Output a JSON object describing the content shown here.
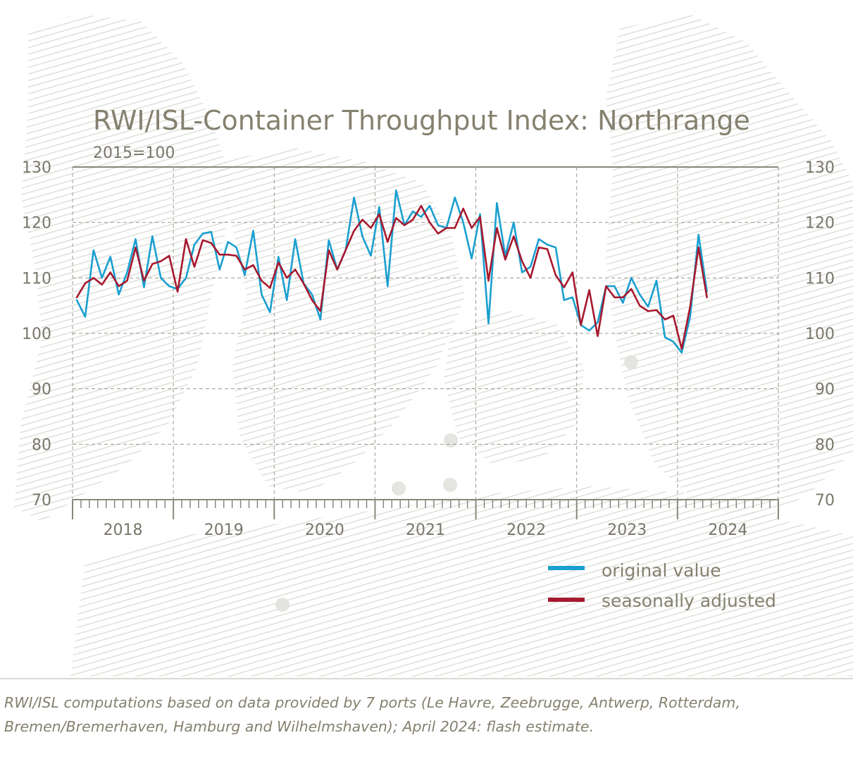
{
  "chart_data": {
    "type": "line",
    "title": "RWI/ISL-Container Throughput Index: Northrange",
    "subtitle": "2015=100",
    "ylim": [
      70,
      130
    ],
    "y_ticks": [
      70,
      80,
      90,
      100,
      110,
      120,
      130
    ],
    "x_start": "2018-01",
    "x_end": "2024-12",
    "x_labels": [
      "2018",
      "2019",
      "2020",
      "2021",
      "2022",
      "2023",
      "2024"
    ],
    "grid": true,
    "legend_position": "bottom-right",
    "series": [
      {
        "name": "original value",
        "color": "#1a9fd0",
        "values": [
          106.0,
          103.0,
          115.0,
          110.0,
          113.8,
          107.0,
          111.0,
          117.0,
          108.3,
          117.5,
          110.0,
          108.5,
          108.0,
          110.0,
          116.0,
          118.0,
          118.3,
          111.5,
          116.5,
          115.5,
          110.5,
          118.5,
          107.0,
          103.8,
          113.8,
          106.0,
          117.0,
          109.0,
          107.0,
          102.5,
          116.8,
          111.5,
          115.0,
          124.5,
          117.5,
          114.0,
          122.8,
          108.5,
          125.8,
          119.5,
          122.0,
          121.0,
          123.0,
          119.5,
          119.0,
          124.5,
          120.0,
          113.5,
          121.5,
          101.8,
          123.5,
          114.0,
          120.0,
          111.0,
          112.0,
          117.0,
          116.0,
          115.5,
          106.0,
          106.5,
          101.5,
          100.5,
          102.0,
          108.5,
          108.5,
          105.5,
          110.0,
          107.0,
          104.8,
          109.5,
          99.3,
          98.5,
          96.5,
          103.0,
          117.8,
          107.5
        ]
      },
      {
        "name": "seasonally adjusted",
        "color": "#a6192e",
        "values": [
          106.5,
          109.0,
          110.0,
          108.8,
          111.0,
          108.5,
          109.5,
          115.5,
          109.5,
          112.5,
          113.0,
          114.0,
          107.5,
          117.0,
          112.0,
          116.8,
          116.3,
          114.2,
          114.2,
          114.0,
          111.5,
          112.3,
          109.5,
          108.2,
          112.8,
          110.0,
          111.5,
          109.0,
          106.0,
          104.0,
          115.0,
          111.5,
          115.0,
          118.5,
          120.5,
          119.0,
          121.5,
          116.5,
          120.8,
          119.5,
          120.5,
          123.0,
          120.0,
          118.0,
          119.0,
          119.0,
          122.5,
          119.0,
          121.0,
          109.5,
          119.0,
          113.3,
          117.5,
          113.0,
          110.0,
          115.5,
          115.2,
          110.5,
          108.3,
          111.0,
          101.5,
          107.8,
          99.5,
          108.5,
          106.5,
          106.5,
          108.0,
          105.0,
          104.0,
          104.2,
          102.5,
          103.2,
          97.2,
          104.8,
          115.5,
          106.5
        ]
      }
    ],
    "note": "RWI/ISL computations based on data provided by 7 ports (Le Havre, Zeebrugge, Antwerp, Rotterdam, Bremen/Bremerhaven, Hamburg and Wilhelmshaven); April 2024: flash estimate."
  }
}
